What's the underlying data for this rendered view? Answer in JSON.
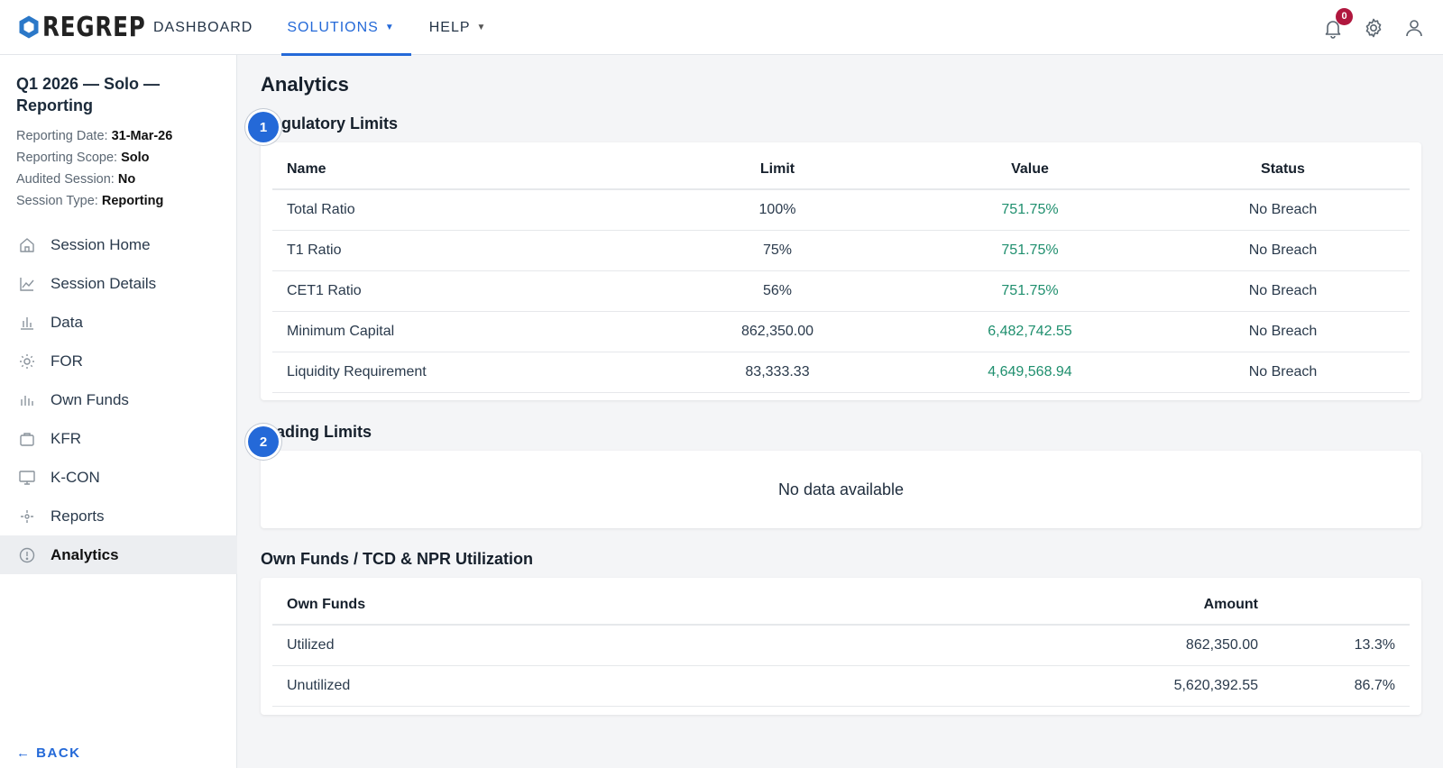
{
  "app": {
    "logo_text": "REGREP"
  },
  "nav": {
    "items": [
      {
        "label": "DASHBOARD",
        "has_caret": false,
        "active": false
      },
      {
        "label": "SOLUTIONS",
        "has_caret": true,
        "active": true
      },
      {
        "label": "HELP",
        "has_caret": true,
        "active": false
      }
    ],
    "notification_count": "0"
  },
  "sidebar": {
    "session_title": "Q1 2026 — Solo — Reporting",
    "meta": [
      {
        "label": "Reporting Date: ",
        "value": "31-Mar-26"
      },
      {
        "label": "Reporting Scope: ",
        "value": "Solo"
      },
      {
        "label": "Audited Session: ",
        "value": "No"
      },
      {
        "label": "Session Type: ",
        "value": "Reporting"
      }
    ],
    "items": [
      {
        "label": "Session Home",
        "icon": "home-icon"
      },
      {
        "label": "Session Details",
        "icon": "line-chart-icon"
      },
      {
        "label": "Data",
        "icon": "bar-chart-icon"
      },
      {
        "label": "FOR",
        "icon": "sun-icon"
      },
      {
        "label": "Own Funds",
        "icon": "bars-icon"
      },
      {
        "label": "KFR",
        "icon": "briefcase-icon"
      },
      {
        "label": "K-CON",
        "icon": "monitor-icon"
      },
      {
        "label": "Reports",
        "icon": "crosshair-icon"
      },
      {
        "label": "Analytics",
        "icon": "info-circle-icon",
        "active": true
      }
    ],
    "back_label": "← BACK"
  },
  "main": {
    "title": "Analytics",
    "regulatory": {
      "step": "1",
      "title": "Regulatory Limits",
      "headers": [
        "Name",
        "Limit",
        "Value",
        "Status"
      ],
      "rows": [
        [
          "Total Ratio",
          "100%",
          "751.75%",
          "No Breach"
        ],
        [
          "T1 Ratio",
          "75%",
          "751.75%",
          "No Breach"
        ],
        [
          "CET1 Ratio",
          "56%",
          "751.75%",
          "No Breach"
        ],
        [
          "Minimum Capital",
          "862,350.00",
          "6,482,742.55",
          "No Breach"
        ],
        [
          "Liquidity Requirement",
          "83,333.33",
          "4,649,568.94",
          "No Breach"
        ]
      ]
    },
    "trading": {
      "step": "2",
      "title": "Trading Limits",
      "empty_text": "No data available"
    },
    "own_funds": {
      "title": "Own Funds / TCD & NPR Utilization",
      "headers": [
        "Own Funds",
        "Amount",
        ""
      ],
      "rows": [
        [
          "Utilized",
          "862,350.00",
          "13.3%"
        ],
        [
          "Unutilized",
          "5,620,392.55",
          "86.7%"
        ]
      ]
    }
  },
  "colors": {
    "accent": "#2469d8",
    "positive": "#1f8f6e",
    "badge": "#b0173e"
  }
}
